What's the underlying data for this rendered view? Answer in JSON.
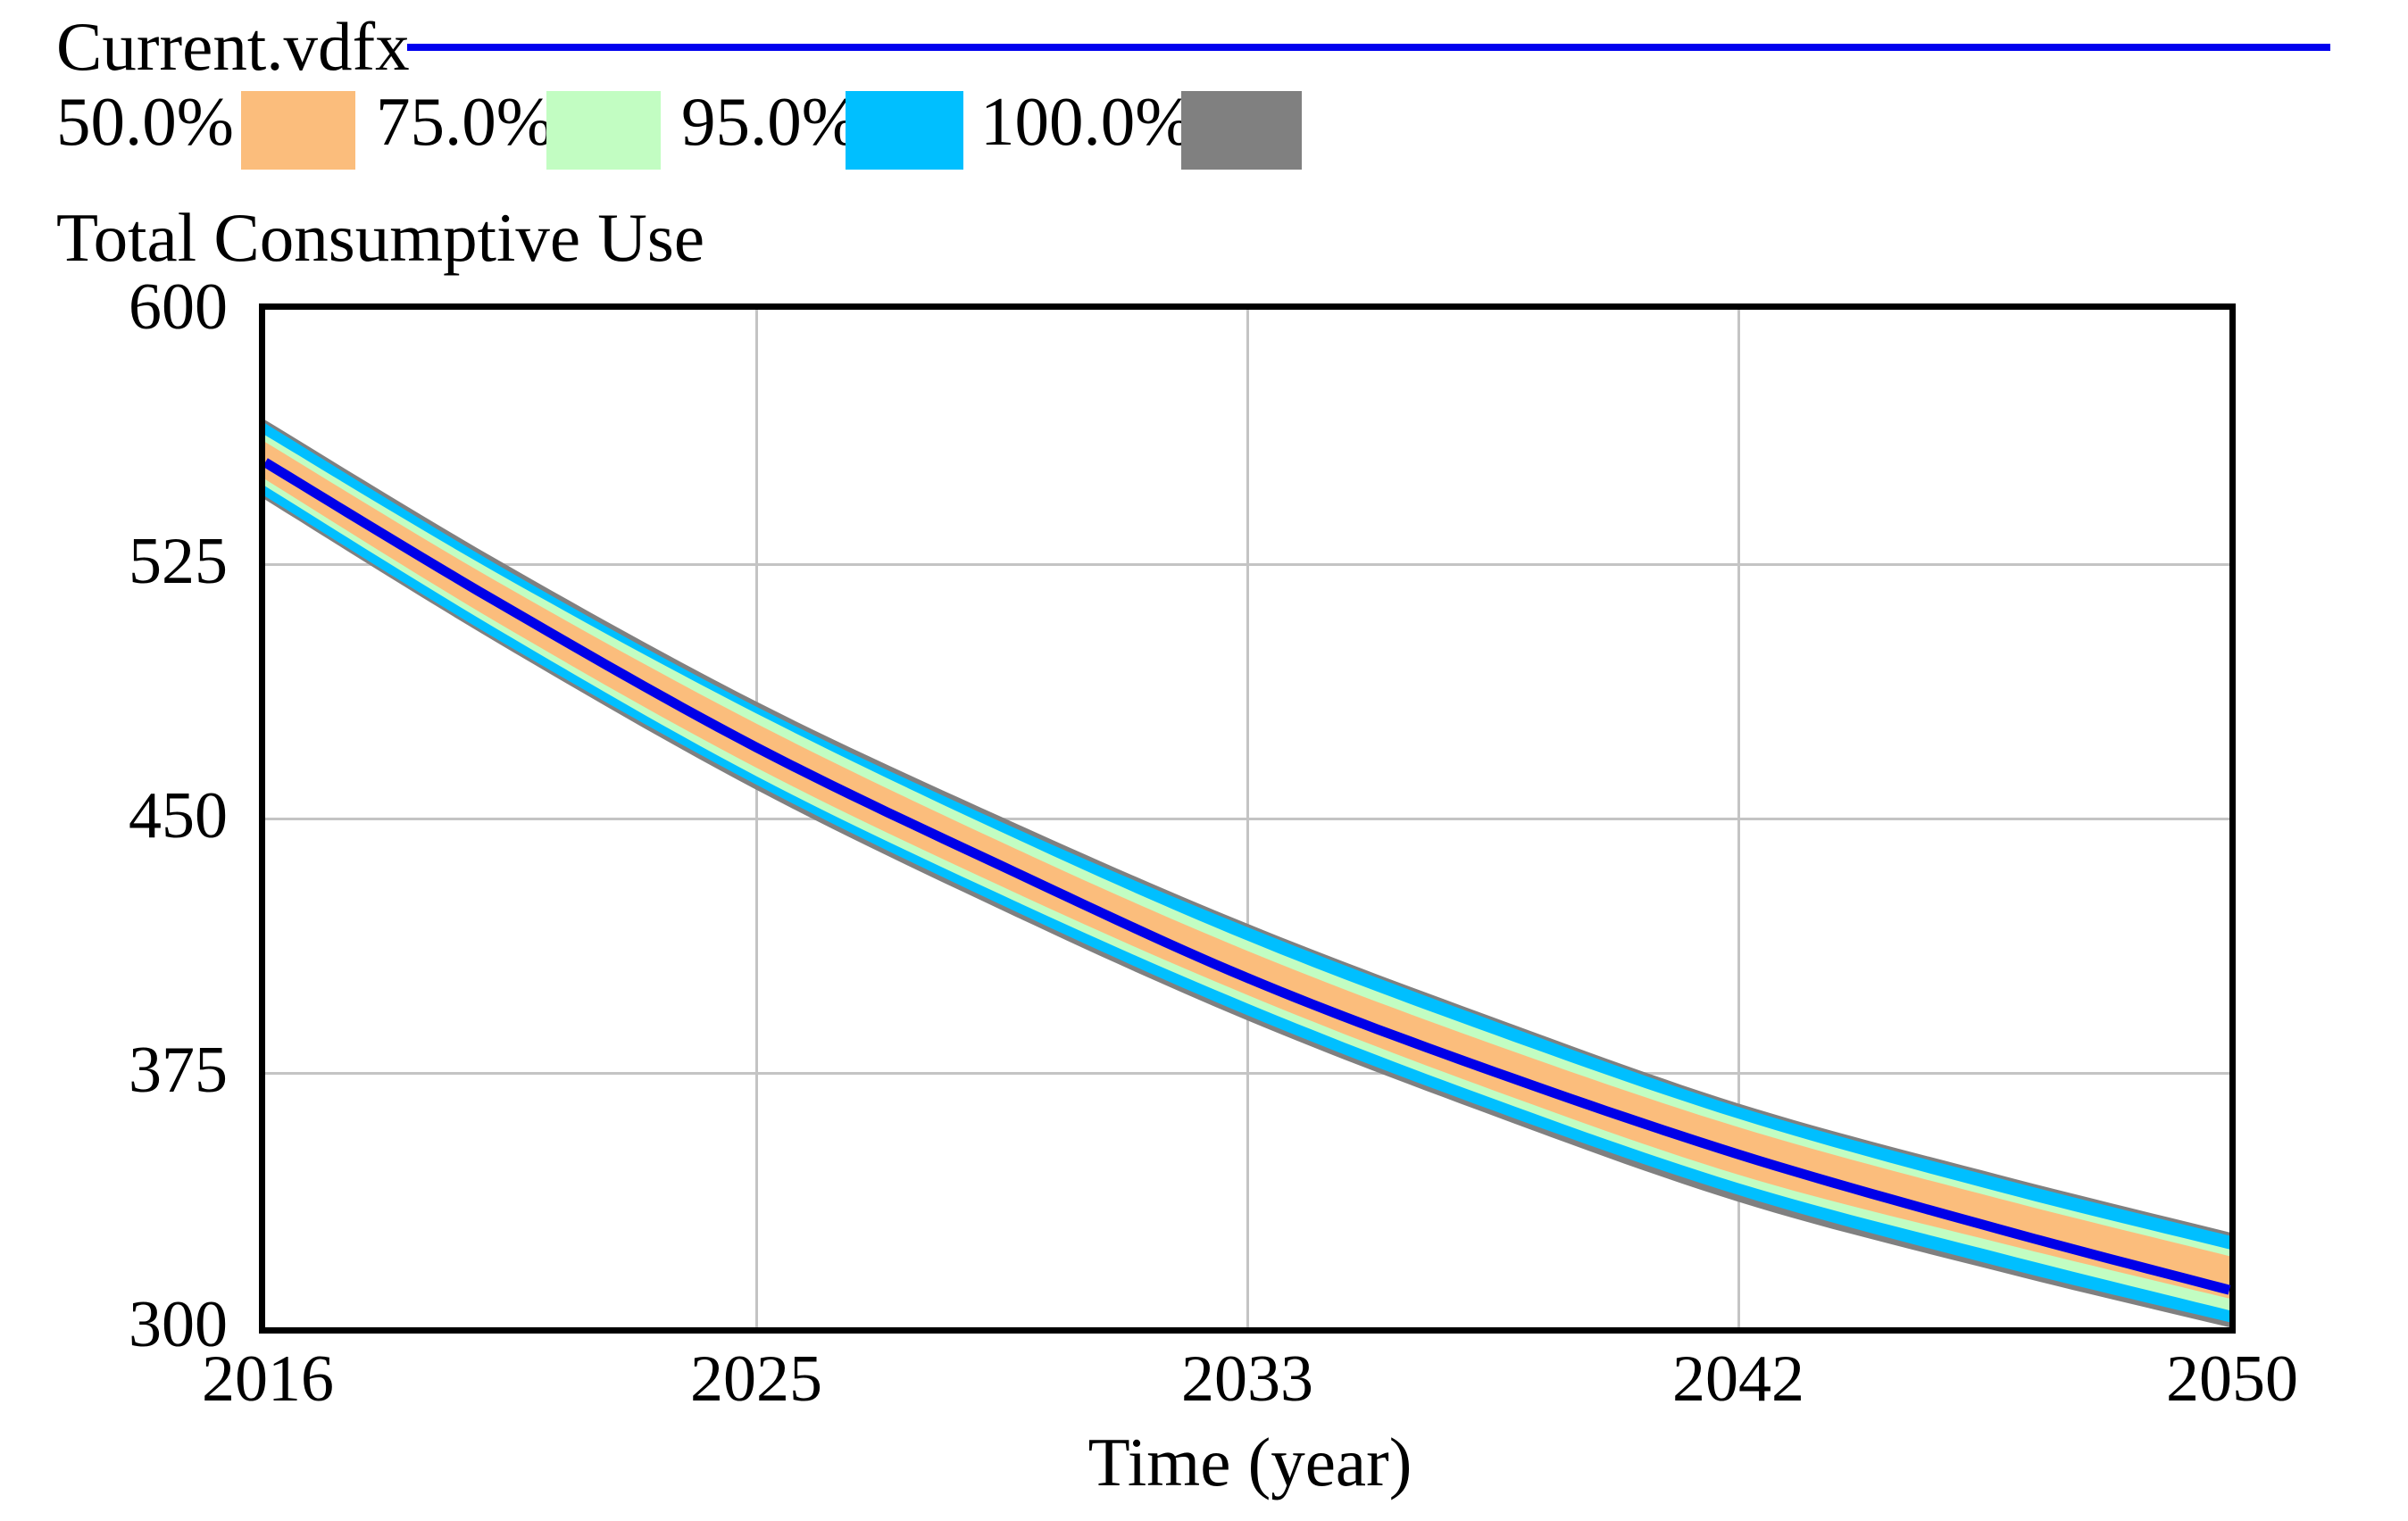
{
  "header": {
    "dataset_label": "Current.vdfx",
    "dataset_line_color": "#0000EE"
  },
  "chart_data": {
    "type": "area",
    "title": "Total Consumptive Use",
    "xlabel": "Time (year)",
    "xlim": [
      2016,
      2050
    ],
    "ylim": [
      300,
      600
    ],
    "x_tick_labels": [
      "2016",
      "2025",
      "2033",
      "2042",
      "2050"
    ],
    "y_tick_labels": [
      "600",
      "525",
      "450",
      "375",
      "300"
    ],
    "grid": true,
    "legend_position": "top-left",
    "legend": [
      {
        "label": "50.0%",
        "color": "#FBBD7C"
      },
      {
        "label": "75.0%",
        "color": "#C2FDC2"
      },
      {
        "label": "95.0%",
        "color": "#00BFFF"
      },
      {
        "label": "100.0%",
        "color": "#808080"
      }
    ],
    "years": [
      2016,
      2020,
      2024.5,
      2029,
      2033,
      2037,
      2041.5,
      2046,
      2050
    ],
    "series": [
      {
        "name": "Current",
        "color": "#0000E8",
        "line_width": 11,
        "values": [
          555,
          514,
          471,
          434,
          403,
          377,
          351,
          329,
          311
        ]
      }
    ],
    "bands": {
      "p50": {
        "label": "50.0%",
        "color": "#FBBD7C",
        "lo": [
          550,
          508,
          465,
          428,
          398,
          371.5,
          345,
          325,
          308.5
        ],
        "hi": [
          561,
          520,
          478,
          441,
          411,
          385,
          359,
          338,
          321
        ]
      },
      "p75": {
        "label": "75.0%",
        "color": "#C2FDC2",
        "lo": [
          548,
          506,
          462.5,
          425.5,
          395.5,
          369,
          342.5,
          322,
          305
        ],
        "hi": [
          563,
          522.5,
          481,
          444,
          414,
          388,
          361.5,
          340,
          323
        ]
      },
      "p95": {
        "label": "95.0%",
        "color": "#00BFFF",
        "lo": [
          545,
          503,
          460,
          422.5,
          392,
          365.5,
          339,
          318,
          301.5
        ],
        "hi": [
          566.5,
          525,
          483,
          447,
          418,
          392,
          365,
          344,
          327
        ]
      },
      "p100": {
        "label": "100.0%",
        "color": "#808080",
        "lo": [
          544,
          502,
          458.5,
          421,
          390.5,
          364,
          337,
          316.5,
          300
        ],
        "hi": [
          567.5,
          526.5,
          484.5,
          448.5,
          419,
          393,
          366,
          345,
          328
        ]
      }
    },
    "band_draw_order": [
      "p100",
      "p95",
      "p75",
      "p50"
    ],
    "gridline_color": "#c4c4c4"
  }
}
